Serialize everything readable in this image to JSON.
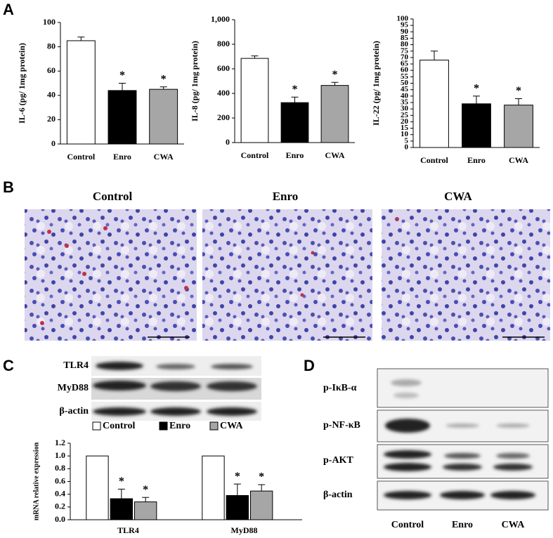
{
  "chart_data": [
    {
      "type": "bar",
      "y_label": "IL-6 (pg/ 1mg protein)",
      "categories": [
        "Control",
        "Enro",
        "CWA"
      ],
      "values": [
        85,
        44,
        45
      ],
      "errors": [
        3,
        6,
        2
      ],
      "colors": [
        "#ffffff",
        "#000000",
        "#a6a6a6"
      ],
      "annotations": [
        null,
        "*",
        "*"
      ],
      "ylim": [
        0,
        100
      ],
      "yticks": [
        0,
        20,
        40,
        60,
        80,
        100
      ]
    },
    {
      "type": "bar",
      "y_label": "IL-8 (pg/ 1mg protein)",
      "categories": [
        "Control",
        "Enro",
        "CWA"
      ],
      "values": [
        685,
        325,
        465
      ],
      "errors": [
        20,
        45,
        25
      ],
      "colors": [
        "#ffffff",
        "#000000",
        "#a6a6a6"
      ],
      "annotations": [
        null,
        "*",
        "*"
      ],
      "ylim": [
        0,
        1000
      ],
      "yticks": [
        0,
        200,
        400,
        600,
        800,
        {
          "value": 1000,
          "label": "1,000"
        }
      ]
    },
    {
      "type": "bar",
      "y_label": "IL-22 (pg/ 1mg protein)",
      "categories": [
        "Control",
        "Enro",
        "CWA"
      ],
      "values": [
        68,
        34,
        33
      ],
      "errors": [
        7,
        6,
        5
      ],
      "colors": [
        "#ffffff",
        "#000000",
        "#a6a6a6"
      ],
      "annotations": [
        null,
        "*",
        "*"
      ],
      "ylim": [
        0,
        100
      ],
      "yticks": [
        0,
        5,
        10,
        15,
        20,
        25,
        30,
        35,
        40,
        45,
        50,
        55,
        60,
        65,
        70,
        75,
        80,
        85,
        90,
        95,
        100
      ]
    },
    {
      "type": "bar",
      "y_label": "mRNA relative expression",
      "categories": [
        "TLR4",
        "MyD88"
      ],
      "series": [
        {
          "name": "Control",
          "color": "#ffffff",
          "values": [
            1,
            1
          ]
        },
        {
          "name": "Enro",
          "color": "#000000",
          "values": [
            0.33,
            0.38
          ],
          "errors": [
            0.15,
            0.18
          ],
          "annotations": [
            "*",
            "*"
          ]
        },
        {
          "name": "CWA",
          "color": "#a6a6a6",
          "values": [
            0.28,
            0.45
          ],
          "errors": [
            0.07,
            0.1
          ],
          "annotations": [
            "*",
            "*"
          ]
        }
      ],
      "ylim": [
        0,
        1.2
      ],
      "yticks": [
        {
          "value": 0,
          "label": "0.0"
        },
        0.2,
        0.4,
        0.6,
        0.8,
        {
          "value": 1,
          "label": "1.0"
        },
        1.2
      ]
    }
  ],
  "panel_labels": [
    "A",
    "B",
    "C",
    "D"
  ],
  "histology": {
    "titles": [
      "Control",
      "Enro",
      "CWA"
    ]
  },
  "blot_c": {
    "labels": [
      "TLR4",
      "MyD88",
      "β-actin"
    ]
  },
  "blot_d": {
    "labels": [
      "p-IκB-α",
      "p-NF-κB",
      "p-AKT",
      "β-actin"
    ],
    "lanes": [
      "Control",
      "Enro",
      "CWA"
    ]
  }
}
